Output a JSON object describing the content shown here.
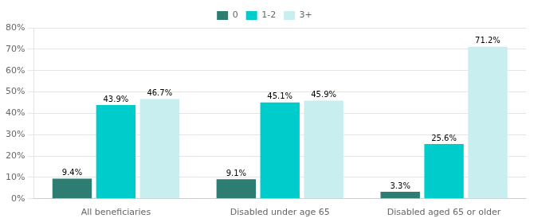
{
  "chart_data": {
    "type": "bar",
    "categories": [
      "All beneficiaries",
      "Disabled under age 65",
      "Disabled aged 65 or older"
    ],
    "series": [
      {
        "name": "0",
        "color": "#2d7d72",
        "values": [
          9.4,
          9.1,
          3.3
        ],
        "value_labels": [
          "9.4%",
          "9.1%",
          "3.3%"
        ]
      },
      {
        "name": "1-2",
        "color": "#00cccc",
        "values": [
          43.9,
          45.1,
          25.6
        ],
        "value_labels": [
          "43.9%",
          "45.1%",
          "25.6%"
        ]
      },
      {
        "name": "3+",
        "color": "#c8eef0",
        "values": [
          46.7,
          45.9,
          71.2
        ],
        "value_labels": [
          "46.7%",
          "45.9%",
          "71.2%"
        ]
      }
    ],
    "ylim": [
      0,
      80
    ],
    "yticks": [
      {
        "value": 0,
        "label": "0%"
      },
      {
        "value": 10,
        "label": "10%"
      },
      {
        "value": 20,
        "label": "20%"
      },
      {
        "value": 30,
        "label": "30%"
      },
      {
        "value": 40,
        "label": "40%"
      },
      {
        "value": 50,
        "label": "50%"
      },
      {
        "value": 60,
        "label": "60%"
      },
      {
        "value": 70,
        "label": "70%"
      },
      {
        "value": 80,
        "label": "80%"
      }
    ],
    "grid": true,
    "legend": "top",
    "data_labels": true
  }
}
